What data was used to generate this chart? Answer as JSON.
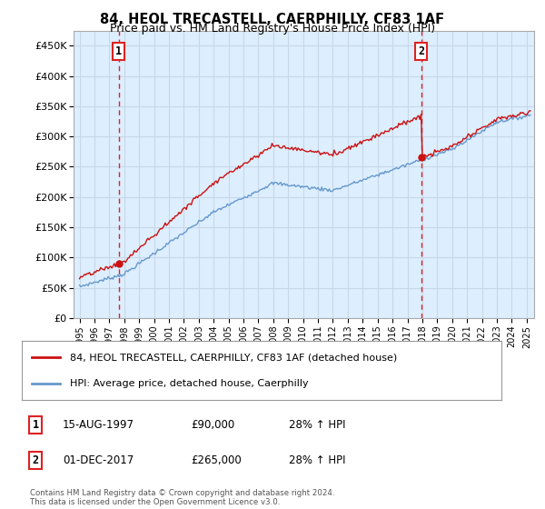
{
  "title": "84, HEOL TRECASTELL, CAERPHILLY, CF83 1AF",
  "subtitle": "Price paid vs. HM Land Registry's House Price Index (HPI)",
  "ylabel_ticks": [
    "£0",
    "£50K",
    "£100K",
    "£150K",
    "£200K",
    "£250K",
    "£300K",
    "£350K",
    "£400K",
    "£450K"
  ],
  "ytick_values": [
    0,
    50000,
    100000,
    150000,
    200000,
    250000,
    300000,
    350000,
    400000,
    450000
  ],
  "ylim": [
    0,
    475000
  ],
  "xlim_start": 1994.6,
  "xlim_end": 2025.5,
  "sale1_date": 1997.625,
  "sale1_price": 90000,
  "sale1_label": "1",
  "sale2_date": 2017.917,
  "sale2_price": 265000,
  "sale2_label": "2",
  "vline_color": "#dd2222",
  "hpi_line_color": "#6699cc",
  "price_line_color": "#cc1111",
  "grid_color": "#c8d8e8",
  "plot_bg_color": "#ddeeff",
  "background_color": "#ffffff",
  "legend_entry1": "84, HEOL TRECASTELL, CAERPHILLY, CF83 1AF (detached house)",
  "legend_entry2": "HPI: Average price, detached house, Caerphilly",
  "footer": "Contains HM Land Registry data © Crown copyright and database right 2024.\nThis data is licensed under the Open Government Licence v3.0.",
  "title_fontsize": 10.5,
  "subtitle_fontsize": 9,
  "xtick_years": [
    1995,
    1996,
    1997,
    1998,
    1999,
    2000,
    2001,
    2002,
    2003,
    2004,
    2005,
    2006,
    2007,
    2008,
    2009,
    2010,
    2011,
    2012,
    2013,
    2014,
    2015,
    2016,
    2017,
    2018,
    2019,
    2020,
    2021,
    2022,
    2023,
    2024,
    2025
  ]
}
